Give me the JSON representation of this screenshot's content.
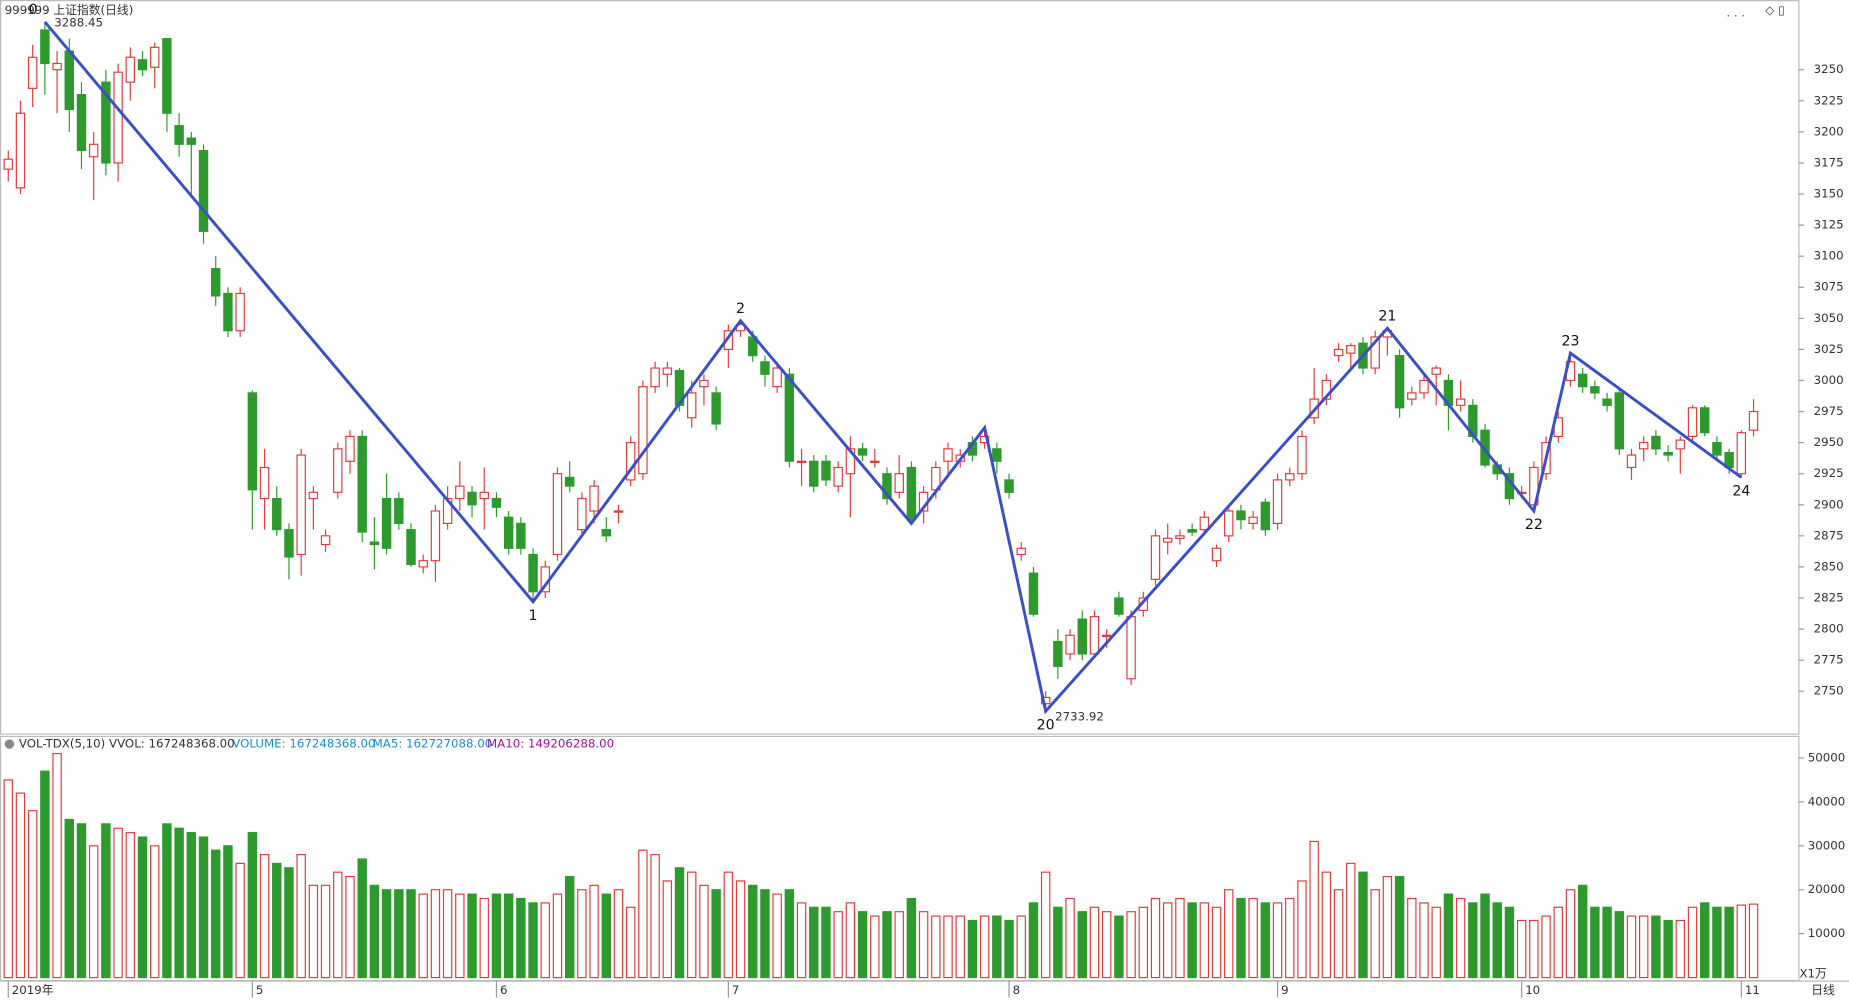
{
  "chart_data": {
    "type": "candlestick",
    "title": "999999 上证指数(日线)",
    "ylim": [
      2716,
      3289
    ],
    "yticks": [
      2750,
      2775,
      2800,
      2825,
      2850,
      2875,
      2900,
      2925,
      2950,
      2975,
      3000,
      3025,
      3050,
      3075,
      3100,
      3125,
      3150,
      3175,
      3200,
      3225,
      3250
    ],
    "up_color": "#e03c3c",
    "down_color": "#2e9a2e",
    "candles": [
      [
        3170,
        3185,
        3160,
        3178
      ],
      [
        3155,
        3225,
        3150,
        3215
      ],
      [
        3235,
        3270,
        3220,
        3260
      ],
      [
        3282,
        3288.45,
        3230,
        3255
      ],
      [
        3250,
        3265,
        3215,
        3255
      ],
      [
        3265,
        3275,
        3200,
        3218
      ],
      [
        3230,
        3240,
        3170,
        3185
      ],
      [
        3180,
        3200,
        3145,
        3190
      ],
      [
        3240,
        3250,
        3165,
        3175
      ],
      [
        3175,
        3255,
        3160,
        3248
      ],
      [
        3240,
        3268,
        3225,
        3260
      ],
      [
        3258,
        3265,
        3245,
        3250
      ],
      [
        3252,
        3272,
        3235,
        3268
      ],
      [
        3275,
        3275,
        3200,
        3215
      ],
      [
        3205,
        3215,
        3180,
        3190
      ],
      [
        3195,
        3200,
        3150,
        3190
      ],
      [
        3185,
        3190,
        3110,
        3120
      ],
      [
        3090,
        3100,
        3060,
        3068
      ],
      [
        3070,
        3075,
        3035,
        3040
      ],
      [
        3040,
        3075,
        3035,
        3070
      ],
      [
        2990,
        2992,
        2880,
        2912
      ],
      [
        2905,
        2945,
        2880,
        2930
      ],
      [
        2905,
        2915,
        2875,
        2880
      ],
      [
        2880,
        2885,
        2840,
        2858
      ],
      [
        2860,
        2945,
        2843,
        2940
      ],
      [
        2905,
        2915,
        2880,
        2910
      ],
      [
        2868,
        2880,
        2862,
        2875
      ],
      [
        2910,
        2950,
        2905,
        2945
      ],
      [
        2935,
        2960,
        2925,
        2955
      ],
      [
        2955,
        2960,
        2870,
        2878
      ],
      [
        2870,
        2890,
        2848,
        2868
      ],
      [
        2905,
        2925,
        2860,
        2865
      ],
      [
        2905,
        2910,
        2880,
        2885
      ],
      [
        2880,
        2885,
        2850,
        2852
      ],
      [
        2850,
        2860,
        2845,
        2855
      ],
      [
        2855,
        2900,
        2838,
        2895
      ],
      [
        2885,
        2915,
        2880,
        2905
      ],
      [
        2905,
        2935,
        2895,
        2915
      ],
      [
        2910,
        2915,
        2890,
        2900
      ],
      [
        2905,
        2930,
        2880,
        2910
      ],
      [
        2905,
        2910,
        2890,
        2898
      ],
      [
        2890,
        2895,
        2860,
        2865
      ],
      [
        2885,
        2890,
        2860,
        2865
      ],
      [
        2860,
        2865,
        2822,
        2830
      ],
      [
        2830,
        2855,
        2825,
        2850
      ],
      [
        2860,
        2930,
        2855,
        2925
      ],
      [
        2922,
        2935,
        2910,
        2915
      ],
      [
        2880,
        2910,
        2875,
        2905
      ],
      [
        2895,
        2920,
        2885,
        2915
      ],
      [
        2880,
        2890,
        2870,
        2875
      ],
      [
        2895,
        2900,
        2885,
        2895
      ],
      [
        2920,
        2955,
        2915,
        2950
      ],
      [
        2925,
        3000,
        2920,
        2995
      ],
      [
        2995,
        3015,
        2990,
        3010
      ],
      [
        3005,
        3015,
        2995,
        3010
      ],
      [
        3008,
        3010,
        2975,
        2980
      ],
      [
        2970,
        3000,
        2962,
        2990
      ],
      [
        2995,
        3005,
        2980,
        3000
      ],
      [
        2990,
        2995,
        2960,
        2965
      ],
      [
        3025,
        3045,
        3010,
        3040
      ],
      [
        3040,
        3048,
        3035,
        3045
      ],
      [
        3035,
        3040,
        3015,
        3020
      ],
      [
        3015,
        3020,
        2995,
        3005
      ],
      [
        2995,
        3015,
        2990,
        3010
      ],
      [
        3005,
        3010,
        2930,
        2935
      ],
      [
        2935,
        2945,
        2915,
        2935
      ],
      [
        2935,
        2940,
        2910,
        2915
      ],
      [
        2935,
        2940,
        2915,
        2920
      ],
      [
        2915,
        2935,
        2910,
        2930
      ],
      [
        2925,
        2955,
        2890,
        2945
      ],
      [
        2945,
        2950,
        2935,
        2940
      ],
      [
        2935,
        2945,
        2930,
        2935
      ],
      [
        2925,
        2930,
        2900,
        2905
      ],
      [
        2910,
        2940,
        2905,
        2925
      ],
      [
        2930,
        2935,
        2885,
        2888
      ],
      [
        2895,
        2915,
        2885,
        2910
      ],
      [
        2912,
        2935,
        2905,
        2930
      ],
      [
        2935,
        2950,
        2925,
        2945
      ],
      [
        2935,
        2945,
        2930,
        2940
      ],
      [
        2950,
        2955,
        2935,
        2940
      ],
      [
        2950,
        2962,
        2945,
        2955
      ],
      [
        2945,
        2950,
        2925,
        2935
      ],
      [
        2920,
        2925,
        2905,
        2910
      ],
      [
        2860,
        2870,
        2855,
        2865
      ],
      [
        2845,
        2850,
        2810,
        2812
      ],
      [
        2740,
        2750,
        2733.92,
        2745
      ],
      [
        2790,
        2800,
        2760,
        2770
      ],
      [
        2780,
        2800,
        2775,
        2795
      ],
      [
        2808,
        2815,
        2775,
        2780
      ],
      [
        2780,
        2815,
        2778,
        2810
      ],
      [
        2795,
        2800,
        2785,
        2795
      ],
      [
        2825,
        2830,
        2810,
        2812
      ],
      [
        2760,
        2815,
        2755,
        2810
      ],
      [
        2815,
        2830,
        2810,
        2825
      ],
      [
        2840,
        2880,
        2835,
        2875
      ],
      [
        2870,
        2885,
        2860,
        2873
      ],
      [
        2873,
        2880,
        2868,
        2875
      ],
      [
        2880,
        2885,
        2875,
        2878
      ],
      [
        2880,
        2895,
        2878,
        2890
      ],
      [
        2855,
        2868,
        2850,
        2865
      ],
      [
        2875,
        2900,
        2870,
        2895
      ],
      [
        2895,
        2900,
        2880,
        2888
      ],
      [
        2885,
        2895,
        2880,
        2890
      ],
      [
        2902,
        2905,
        2875,
        2880
      ],
      [
        2885,
        2925,
        2880,
        2920
      ],
      [
        2920,
        2930,
        2915,
        2925
      ],
      [
        2925,
        2960,
        2920,
        2955
      ],
      [
        2970,
        3010,
        2965,
        2985
      ],
      [
        2985,
        3005,
        2980,
        3000
      ],
      [
        3020,
        3030,
        3015,
        3025
      ],
      [
        3022,
        3030,
        3010,
        3028
      ],
      [
        3030,
        3035,
        3005,
        3010
      ],
      [
        3010,
        3040,
        3005,
        3035
      ],
      [
        3035,
        3042,
        3020,
        3040
      ],
      [
        3020,
        3025,
        2970,
        2978
      ],
      [
        2985,
        2995,
        2980,
        2990
      ],
      [
        2990,
        3005,
        2985,
        3000
      ],
      [
        3005,
        3012,
        2980,
        3010
      ],
      [
        3000,
        3005,
        2960,
        2980
      ],
      [
        2980,
        3000,
        2975,
        2985
      ],
      [
        2980,
        2985,
        2950,
        2955
      ],
      [
        2960,
        2965,
        2930,
        2932
      ],
      [
        2932,
        2935,
        2920,
        2925
      ],
      [
        2925,
        2930,
        2900,
        2905
      ],
      [
        2910,
        2915,
        2905,
        2910
      ],
      [
        2900,
        2935,
        2895,
        2930
      ],
      [
        2925,
        2955,
        2920,
        2950
      ],
      [
        2955,
        2975,
        2950,
        2970
      ],
      [
        3000,
        3022,
        2995,
        3015
      ],
      [
        3005,
        3010,
        2990,
        2995
      ],
      [
        2995,
        3000,
        2985,
        2990
      ],
      [
        2985,
        2990,
        2975,
        2980
      ],
      [
        2990,
        2995,
        2940,
        2945
      ],
      [
        2930,
        2945,
        2920,
        2940
      ],
      [
        2945,
        2955,
        2935,
        2950
      ],
      [
        2955,
        2960,
        2940,
        2945
      ],
      [
        2942,
        2948,
        2935,
        2940
      ],
      [
        2945,
        2955,
        2925,
        2952
      ],
      [
        2955,
        2980,
        2950,
        2978
      ],
      [
        2978,
        2980,
        2955,
        2958
      ],
      [
        2950,
        2955,
        2935,
        2940
      ],
      [
        2942,
        2945,
        2925,
        2930
      ],
      [
        2925,
        2960,
        2922,
        2958
      ],
      [
        2960,
        2985,
        2955,
        2975
      ]
    ],
    "dates": [
      {
        "index": 0,
        "label": "2019年"
      },
      {
        "index": 20,
        "label": "5"
      },
      {
        "index": 40,
        "label": "6"
      },
      {
        "index": 59,
        "label": "7"
      },
      {
        "index": 82,
        "label": "8"
      },
      {
        "index": 104,
        "label": "9"
      },
      {
        "index": 124,
        "label": "10"
      },
      {
        "index": 142,
        "label": "11"
      }
    ],
    "annotations": [
      {
        "text": "3288.45",
        "index": 3
      },
      {
        "text": "2733.92",
        "index": 85
      }
    ],
    "zigzag": {
      "color": "#3a4fc8",
      "points": [
        {
          "label": "0",
          "index": 3,
          "price": 3288.45
        },
        {
          "label": "1",
          "index": 43,
          "price": 2822
        },
        {
          "label": "2",
          "index": 60,
          "price": 3048
        },
        {
          "label": null,
          "index": 74,
          "price": 2885
        },
        {
          "label": null,
          "index": 80,
          "price": 2962
        },
        {
          "label": "20",
          "index": 85,
          "price": 2733.92
        },
        {
          "label": "21",
          "index": 113,
          "price": 3042
        },
        {
          "label": "22",
          "index": 125,
          "price": 2895
        },
        {
          "label": "23",
          "index": 128,
          "price": 3022
        },
        {
          "label": "24",
          "index": 142,
          "price": 2922
        }
      ]
    },
    "volume": {
      "header": "VOL-TDX(5,10) VVOL: 167248368.00",
      "volume_label": "VOLUME: 167248368.00",
      "ma5_label": "MA5: 162727088.00",
      "ma10_label": "MA10: 149206288.00",
      "unit": "X1万",
      "ylim": [
        0,
        54500
      ],
      "yticks": [
        10000,
        20000,
        30000,
        40000,
        50000
      ],
      "values": [
        45000,
        42000,
        38000,
        47000,
        51000,
        36000,
        35000,
        30000,
        35000,
        34000,
        33000,
        32000,
        30000,
        35000,
        34000,
        33000,
        32000,
        29000,
        30000,
        26000,
        33000,
        28000,
        26000,
        25000,
        28000,
        21000,
        21000,
        24000,
        23000,
        27000,
        21000,
        20000,
        20000,
        20000,
        19000,
        20000,
        20000,
        19000,
        19000,
        18000,
        19000,
        19000,
        18000,
        17000,
        17000,
        19000,
        23000,
        20000,
        21000,
        19000,
        20000,
        16000,
        29000,
        28000,
        22000,
        25000,
        24000,
        21000,
        20000,
        24000,
        22000,
        21000,
        20000,
        19000,
        20000,
        17000,
        16000,
        16000,
        15000,
        17000,
        15000,
        14000,
        15000,
        15000,
        18000,
        15000,
        14000,
        14000,
        14000,
        13000,
        14000,
        14000,
        13000,
        14000,
        17000,
        24000,
        16000,
        18000,
        15000,
        16000,
        15000,
        14000,
        15000,
        16000,
        18000,
        17000,
        18000,
        17000,
        17000,
        16000,
        20000,
        18000,
        18000,
        17000,
        17000,
        18000,
        22000,
        31000,
        24000,
        20000,
        26000,
        24000,
        20000,
        23000,
        23000,
        18000,
        17000,
        16000,
        19000,
        18000,
        17000,
        19000,
        17000,
        16000,
        13000,
        13000,
        14000,
        16000,
        20000,
        21000,
        16000,
        16000,
        15000,
        14000,
        14000,
        14000,
        13000,
        13000,
        16000,
        17000,
        16000,
        16000,
        16500,
        16724.8368
      ]
    },
    "period": "日线"
  }
}
